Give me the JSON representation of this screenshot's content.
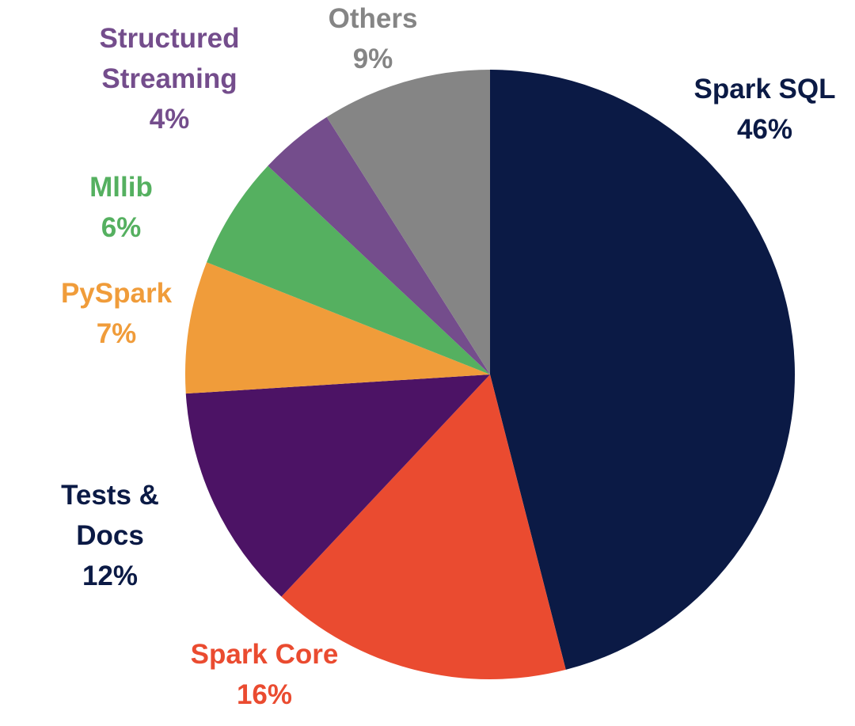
{
  "chart_data": {
    "type": "pie",
    "start_angle_deg": 0,
    "direction": "clockwise",
    "slices": [
      {
        "label": [
          "Spark SQL"
        ],
        "value": 46,
        "value_label": "46%",
        "color": "#0b1a45",
        "label_color": "#0b1a45"
      },
      {
        "label": [
          "Spark Core"
        ],
        "value": 16,
        "value_label": "16%",
        "color": "#ea4b30",
        "label_color": "#ea4b30"
      },
      {
        "label": [
          "Tests &",
          "Docs"
        ],
        "value": 12,
        "value_label": "12%",
        "color": "#4c1365",
        "label_color": "#0b1a45"
      },
      {
        "label": [
          "PySpark"
        ],
        "value": 7,
        "value_label": "7%",
        "color": "#f09c3a",
        "label_color": "#f09c3a"
      },
      {
        "label": [
          "Mllib"
        ],
        "value": 6,
        "value_label": "6%",
        "color": "#55b060",
        "label_color": "#55b060"
      },
      {
        "label": [
          "Structured",
          "Streaming"
        ],
        "value": 4,
        "value_label": "4%",
        "color": "#744d8c",
        "label_color": "#744d8c"
      },
      {
        "label": [
          "Others"
        ],
        "value": 9,
        "value_label": "9%",
        "color": "#858585",
        "label_color": "#858585"
      }
    ]
  }
}
